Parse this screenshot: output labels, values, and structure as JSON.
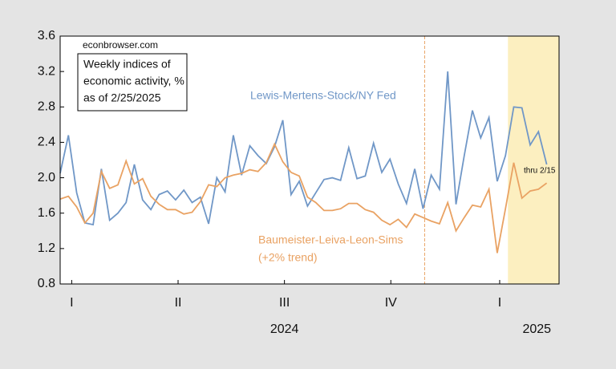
{
  "chart_data": {
    "type": "line",
    "site": "econbrowser.com",
    "note": [
      "Weekly indices of",
      "economic activity, %",
      "as of 2/25/2025"
    ],
    "last_label": "thru 2/15",
    "x": [
      0,
      1,
      2,
      3,
      4,
      5,
      6,
      7,
      8,
      9,
      10,
      11,
      12,
      13,
      14,
      15,
      16,
      17,
      18,
      19,
      20,
      21,
      22,
      23,
      24,
      25,
      26,
      27,
      28,
      29,
      30,
      31,
      32,
      33,
      34,
      35,
      36,
      37,
      38,
      39,
      40,
      41,
      42,
      43,
      44,
      45,
      46,
      47,
      48,
      49,
      50,
      51,
      52,
      53,
      54,
      55,
      56,
      57,
      58,
      59
    ],
    "series": [
      {
        "name": "Lewis-Mertens-Stock/NY Fed",
        "color": "#7097c7",
        "values": [
          2.05,
          2.48,
          1.83,
          1.49,
          1.47,
          2.1,
          1.52,
          1.6,
          1.72,
          2.15,
          1.75,
          1.64,
          1.81,
          1.85,
          1.75,
          1.86,
          1.72,
          1.78,
          1.48,
          2.0,
          1.84,
          2.48,
          2.03,
          2.36,
          2.25,
          2.16,
          2.35,
          2.65,
          1.81,
          1.96,
          1.68,
          1.83,
          1.98,
          2.0,
          1.97,
          2.34,
          1.99,
          2.02,
          2.39,
          2.06,
          2.21,
          1.93,
          1.71,
          2.1,
          1.65,
          2.03,
          1.87,
          3.2,
          1.7,
          2.25,
          2.76,
          2.45,
          2.68,
          1.96,
          2.25,
          2.8,
          2.79,
          2.37,
          2.52,
          2.15
        ]
      },
      {
        "name": "Baumeister-Leiva-Leon-Sims",
        "subname": "(+2% trend)",
        "color": "#e9a263",
        "values": [
          1.76,
          1.79,
          1.67,
          1.49,
          1.6,
          2.07,
          1.88,
          1.92,
          2.19,
          1.93,
          1.99,
          1.79,
          1.7,
          1.64,
          1.64,
          1.59,
          1.61,
          1.73,
          1.92,
          1.9,
          2.0,
          2.03,
          2.05,
          2.09,
          2.07,
          2.17,
          2.38,
          2.18,
          2.06,
          2.02,
          1.78,
          1.72,
          1.63,
          1.63,
          1.65,
          1.71,
          1.71,
          1.64,
          1.61,
          1.52,
          1.47,
          1.53,
          1.44,
          1.59,
          1.55,
          1.51,
          1.48,
          1.72,
          1.4,
          1.55,
          1.69,
          1.67,
          1.87,
          1.15,
          1.65,
          2.17,
          1.77,
          1.85,
          1.87,
          1.94
        ]
      }
    ],
    "xlim": [
      0,
      60.5
    ],
    "xticks": [
      {
        "value": 1.4,
        "label": "I"
      },
      {
        "value": 14.3,
        "label": "II"
      },
      {
        "value": 27.2,
        "label": "III"
      },
      {
        "value": 40.1,
        "label": "IV"
      },
      {
        "value": 53.3,
        "label": "I"
      }
    ],
    "xgroups": [
      {
        "value": 27.2,
        "label": "2024"
      },
      {
        "value": 57.8,
        "label": "2025"
      }
    ],
    "ylim": [
      0.8,
      3.6
    ],
    "yticks": [
      0.8,
      1.2,
      1.6,
      {
        "value": 2,
        "label": "2.0"
      },
      2.4,
      2.8,
      3.2,
      3.6
    ],
    "vline": 44.2,
    "vline_color": "#e9a263",
    "shade_from": 54.3,
    "shade_color": "#fcefc0"
  }
}
